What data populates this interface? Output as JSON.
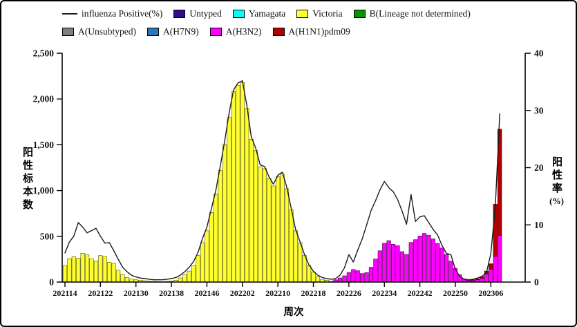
{
  "legend": {
    "row_break_after": 5,
    "entries": [
      {
        "label": "influenza Positive(%)",
        "type": "line",
        "color": "#1a1a1a"
      },
      {
        "label": "Untyped",
        "type": "swatch",
        "color": "#310D8C"
      },
      {
        "label": "Yamagata",
        "type": "swatch",
        "color": "#00FFFF"
      },
      {
        "label": "Victoria",
        "type": "swatch",
        "color": "#FFFF2E"
      },
      {
        "label": "B(Lineage not determined)",
        "type": "swatch",
        "color": "#0B9200"
      },
      {
        "label": "A(Unsubtyped)",
        "type": "swatch",
        "color": "#7F7F7F"
      },
      {
        "label": "A(H7N9)",
        "type": "swatch",
        "color": "#2E75B6"
      },
      {
        "label": "A(H3N2)",
        "type": "swatch",
        "color": "#FF00FF"
      },
      {
        "label": "A(H1N1)pdm09",
        "type": "swatch",
        "color": "#B20000"
      }
    ]
  },
  "chart_data": {
    "type": "stacked-bar-with-line",
    "xlabel": "周次",
    "left_axis": {
      "label": "阳性标本数",
      "min": 0,
      "max": 2500,
      "ticks": [
        "0",
        "500",
        "1,000",
        "1,500",
        "2,000",
        "2,500"
      ]
    },
    "right_axis": {
      "label": "阳性率",
      "unit": "(%)",
      "min": 0,
      "max": 40,
      "ticks": [
        "0",
        "10",
        "20",
        "30",
        "40"
      ]
    },
    "x_tick_labels": [
      "202114",
      "202122",
      "202130",
      "202138",
      "202146",
      "202202",
      "202210",
      "202218",
      "202226",
      "202234",
      "202242",
      "202250",
      "202306"
    ],
    "x_tick_indices": [
      0,
      8,
      16,
      24,
      32,
      40,
      48,
      56,
      64,
      72,
      80,
      88,
      96
    ],
    "weeks": [
      "202114",
      "202115",
      "202116",
      "202117",
      "202118",
      "202119",
      "202120",
      "202121",
      "202122",
      "202123",
      "202124",
      "202125",
      "202126",
      "202127",
      "202128",
      "202129",
      "202130",
      "202131",
      "202132",
      "202133",
      "202134",
      "202135",
      "202136",
      "202137",
      "202138",
      "202139",
      "202140",
      "202141",
      "202142",
      "202143",
      "202144",
      "202145",
      "202146",
      "202147",
      "202148",
      "202149",
      "202150",
      "202151",
      "202152",
      "202201",
      "202202",
      "202203",
      "202204",
      "202205",
      "202206",
      "202207",
      "202208",
      "202209",
      "202210",
      "202211",
      "202212",
      "202213",
      "202214",
      "202215",
      "202216",
      "202217",
      "202218",
      "202219",
      "202220",
      "202221",
      "202222",
      "202223",
      "202224",
      "202225",
      "202226",
      "202227",
      "202228",
      "202229",
      "202230",
      "202231",
      "202232",
      "202233",
      "202234",
      "202235",
      "202236",
      "202237",
      "202238",
      "202239",
      "202240",
      "202241",
      "202242",
      "202243",
      "202244",
      "202245",
      "202246",
      "202247",
      "202248",
      "202249",
      "202250",
      "202251",
      "202252",
      "202301",
      "202302",
      "202303",
      "202304",
      "202305",
      "202306",
      "202307",
      "202308"
    ],
    "line": {
      "name": "influenza Positive(%)",
      "color": "#1a1a1a",
      "values": [
        5.1,
        7.0,
        8.0,
        10.4,
        9.6,
        8.6,
        9.0,
        9.4,
        8.0,
        6.8,
        6.9,
        5.5,
        4.0,
        2.6,
        1.8,
        1.2,
        0.9,
        0.7,
        0.6,
        0.5,
        0.4,
        0.4,
        0.4,
        0.5,
        0.6,
        0.8,
        1.2,
        1.8,
        2.6,
        3.6,
        5.2,
        7.6,
        9.6,
        12.8,
        16.0,
        20.2,
        24.6,
        29.5,
        33.6,
        34.8,
        35.2,
        30.9,
        25.4,
        23.4,
        20.5,
        20.2,
        18.4,
        17.1,
        18.7,
        19.2,
        16.6,
        12.9,
        9.2,
        7.0,
        4.8,
        3.0,
        1.9,
        1.2,
        0.8,
        0.6,
        0.5,
        0.6,
        1.2,
        2.5,
        4.8,
        3.5,
        5.6,
        7.5,
        10.0,
        12.5,
        14.2,
        16.1,
        17.6,
        16.5,
        15.8,
        14.4,
        12.4,
        10.1,
        15.3,
        10.6,
        11.4,
        11.6,
        10.4,
        9.2,
        8.2,
        6.4,
        5.0,
        4.8,
        2.2,
        1.0,
        0.5,
        0.4,
        0.5,
        0.7,
        1.0,
        1.6,
        5.0,
        13.0,
        29.4
      ]
    },
    "series": [
      {
        "name": "Victoria",
        "color": "#FFFF2E",
        "stroke": "#55550A",
        "values": [
          180,
          255,
          280,
          260,
          315,
          300,
          255,
          230,
          290,
          280,
          215,
          205,
          130,
          85,
          50,
          35,
          25,
          20,
          15,
          10,
          8,
          6,
          5,
          8,
          12,
          20,
          45,
          80,
          120,
          180,
          290,
          430,
          560,
          760,
          960,
          1220,
          1500,
          1800,
          2080,
          2150,
          2180,
          1900,
          1560,
          1440,
          1260,
          1240,
          1130,
          1050,
          1150,
          1180,
          1020,
          790,
          560,
          430,
          290,
          180,
          110,
          60,
          30,
          20,
          12,
          10,
          10,
          8,
          5,
          5,
          4,
          3,
          3,
          2,
          2,
          2,
          3,
          3,
          3,
          2,
          2,
          2,
          3,
          3,
          3,
          2,
          2,
          2,
          2,
          2,
          2,
          0,
          0,
          0,
          0,
          0,
          0,
          0,
          0,
          0,
          0,
          0,
          0
        ]
      },
      {
        "name": "Yamagata",
        "color": "#00FFFF",
        "stroke": "#006666",
        "values": [
          0,
          0,
          0,
          0,
          0,
          0,
          0,
          0,
          0,
          0,
          0,
          0,
          0,
          0,
          0,
          0,
          0,
          0,
          0,
          0,
          0,
          0,
          0,
          0,
          0,
          0,
          0,
          0,
          0,
          0,
          0,
          0,
          0,
          0,
          0,
          0,
          0,
          0,
          0,
          0,
          0,
          0,
          0,
          0,
          0,
          0,
          0,
          0,
          0,
          0,
          0,
          0,
          0,
          0,
          0,
          0,
          0,
          0,
          0,
          0,
          0,
          0,
          0,
          0,
          0,
          2,
          0,
          0,
          0,
          0,
          0,
          0,
          0,
          0,
          0,
          0,
          0,
          0,
          0,
          0,
          0,
          0,
          0,
          0,
          0,
          0,
          0,
          0,
          0,
          0,
          0,
          0,
          0,
          0,
          0,
          0,
          0,
          0,
          0
        ]
      },
      {
        "name": "A(H3N2)",
        "color": "#FF00FF",
        "stroke": "#4D004D",
        "values": [
          0,
          0,
          0,
          0,
          0,
          0,
          0,
          0,
          0,
          0,
          0,
          0,
          0,
          0,
          0,
          0,
          0,
          0,
          0,
          0,
          0,
          0,
          0,
          0,
          0,
          0,
          0,
          0,
          0,
          0,
          0,
          0,
          0,
          0,
          0,
          0,
          0,
          0,
          0,
          0,
          0,
          0,
          0,
          0,
          0,
          0,
          0,
          0,
          0,
          0,
          0,
          0,
          0,
          0,
          0,
          0,
          0,
          0,
          0,
          0,
          0,
          15,
          35,
          60,
          100,
          130,
          120,
          90,
          100,
          160,
          250,
          340,
          420,
          450,
          410,
          395,
          330,
          300,
          430,
          460,
          500,
          530,
          510,
          470,
          420,
          370,
          300,
          230,
          150,
          80,
          35,
          20,
          20,
          25,
          40,
          90,
          140,
          280,
          510
        ]
      },
      {
        "name": "A(H1N1)pdm09",
        "color": "#B20000",
        "stroke": "#2A0000",
        "values": [
          0,
          0,
          0,
          0,
          0,
          0,
          0,
          0,
          0,
          0,
          0,
          0,
          0,
          0,
          0,
          0,
          0,
          0,
          0,
          0,
          0,
          0,
          0,
          0,
          0,
          0,
          0,
          0,
          0,
          0,
          0,
          0,
          0,
          0,
          0,
          0,
          0,
          0,
          0,
          0,
          0,
          0,
          0,
          0,
          0,
          0,
          0,
          0,
          0,
          0,
          0,
          0,
          0,
          0,
          0,
          0,
          0,
          0,
          0,
          0,
          0,
          0,
          0,
          0,
          0,
          0,
          0,
          0,
          0,
          0,
          0,
          0,
          0,
          0,
          0,
          0,
          0,
          0,
          0,
          0,
          0,
          0,
          0,
          0,
          0,
          0,
          0,
          0,
          0,
          0,
          0,
          2,
          5,
          10,
          20,
          30,
          60,
          570,
          1160
        ]
      }
    ],
    "zero_series": [
      "Untyped",
      "B(Lineage not determined)",
      "A(Unsubtyped)",
      "A(H7N9)"
    ]
  }
}
